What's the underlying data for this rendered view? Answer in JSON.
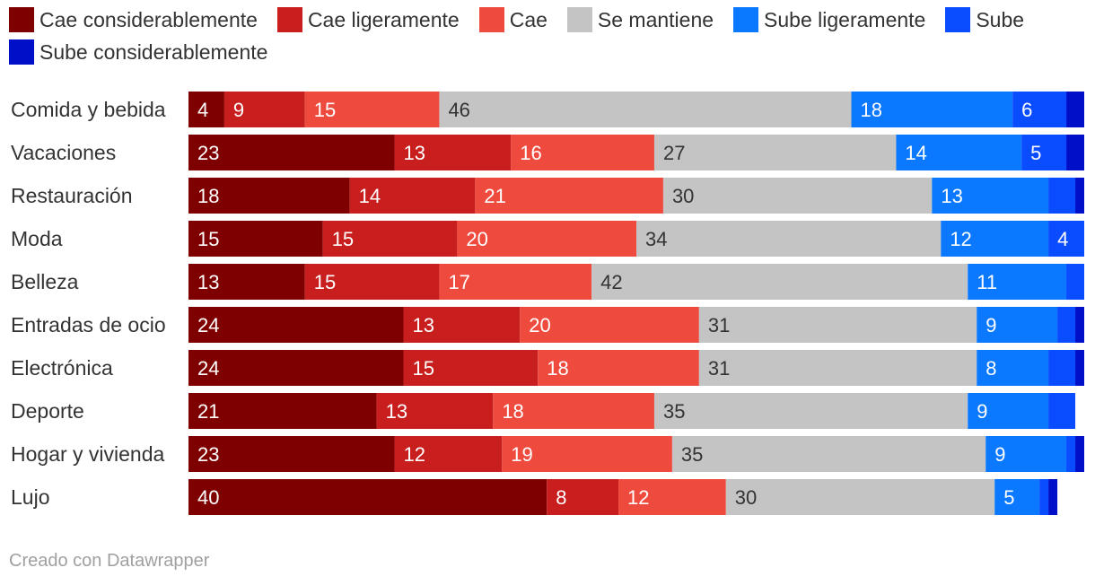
{
  "chart_data": {
    "type": "bar",
    "orientation": "horizontal",
    "stacked": true,
    "title": "",
    "xlabel": "",
    "ylabel": "",
    "xlim": [
      0,
      100
    ],
    "legend_position": "top",
    "categories": [
      "Comida y bebida",
      "Vacaciones",
      "Restauración",
      "Moda",
      "Belleza",
      "Entradas de ocio",
      "Electrónica",
      "Deporte",
      "Hogar y vivienda",
      "Lujo"
    ],
    "series": [
      {
        "name": "Cae considerablemente",
        "color": "#7f0000",
        "label_color": "#ffffff",
        "values": [
          4,
          23,
          18,
          15,
          13,
          24,
          24,
          21,
          23,
          40
        ]
      },
      {
        "name": "Cae ligeramente",
        "color": "#c81e1e",
        "label_color": "#ffffff",
        "values": [
          9,
          13,
          14,
          15,
          15,
          13,
          15,
          13,
          12,
          8
        ]
      },
      {
        "name": "Cae",
        "color": "#ef4a3e",
        "label_color": "#ffffff",
        "values": [
          15,
          16,
          21,
          20,
          17,
          20,
          18,
          18,
          19,
          12
        ]
      },
      {
        "name": "Se mantiene",
        "color": "#c4c4c4",
        "label_color": "#333333",
        "values": [
          46,
          27,
          30,
          34,
          42,
          31,
          31,
          35,
          35,
          30
        ]
      },
      {
        "name": "Sube ligeramente",
        "color": "#0a78ff",
        "label_color": "#ffffff",
        "values": [
          18,
          14,
          13,
          12,
          11,
          9,
          8,
          9,
          9,
          5
        ]
      },
      {
        "name": "Sube",
        "color": "#0a4cff",
        "label_color": "#ffffff",
        "values": [
          6,
          5,
          3,
          4,
          2,
          2,
          3,
          3,
          1,
          1
        ]
      },
      {
        "name": "Sube considerablemente",
        "color": "#0010c8",
        "label_color": "#ffffff",
        "values": [
          2,
          2,
          1,
          0,
          0,
          1,
          1,
          0,
          1,
          1
        ]
      }
    ],
    "visible_labels": [
      [
        true,
        true,
        true,
        true,
        true,
        true,
        false
      ],
      [
        true,
        true,
        true,
        true,
        true,
        true,
        false
      ],
      [
        true,
        true,
        true,
        true,
        true,
        false,
        false
      ],
      [
        true,
        true,
        true,
        true,
        true,
        true,
        false
      ],
      [
        true,
        true,
        true,
        true,
        true,
        false,
        false
      ],
      [
        true,
        true,
        true,
        true,
        true,
        false,
        false
      ],
      [
        true,
        true,
        true,
        true,
        true,
        false,
        false
      ],
      [
        true,
        true,
        true,
        true,
        true,
        false,
        false
      ],
      [
        true,
        true,
        true,
        true,
        true,
        false,
        false
      ],
      [
        true,
        true,
        true,
        true,
        true,
        false,
        false
      ]
    ]
  },
  "footer": "Creado con Datawrapper"
}
